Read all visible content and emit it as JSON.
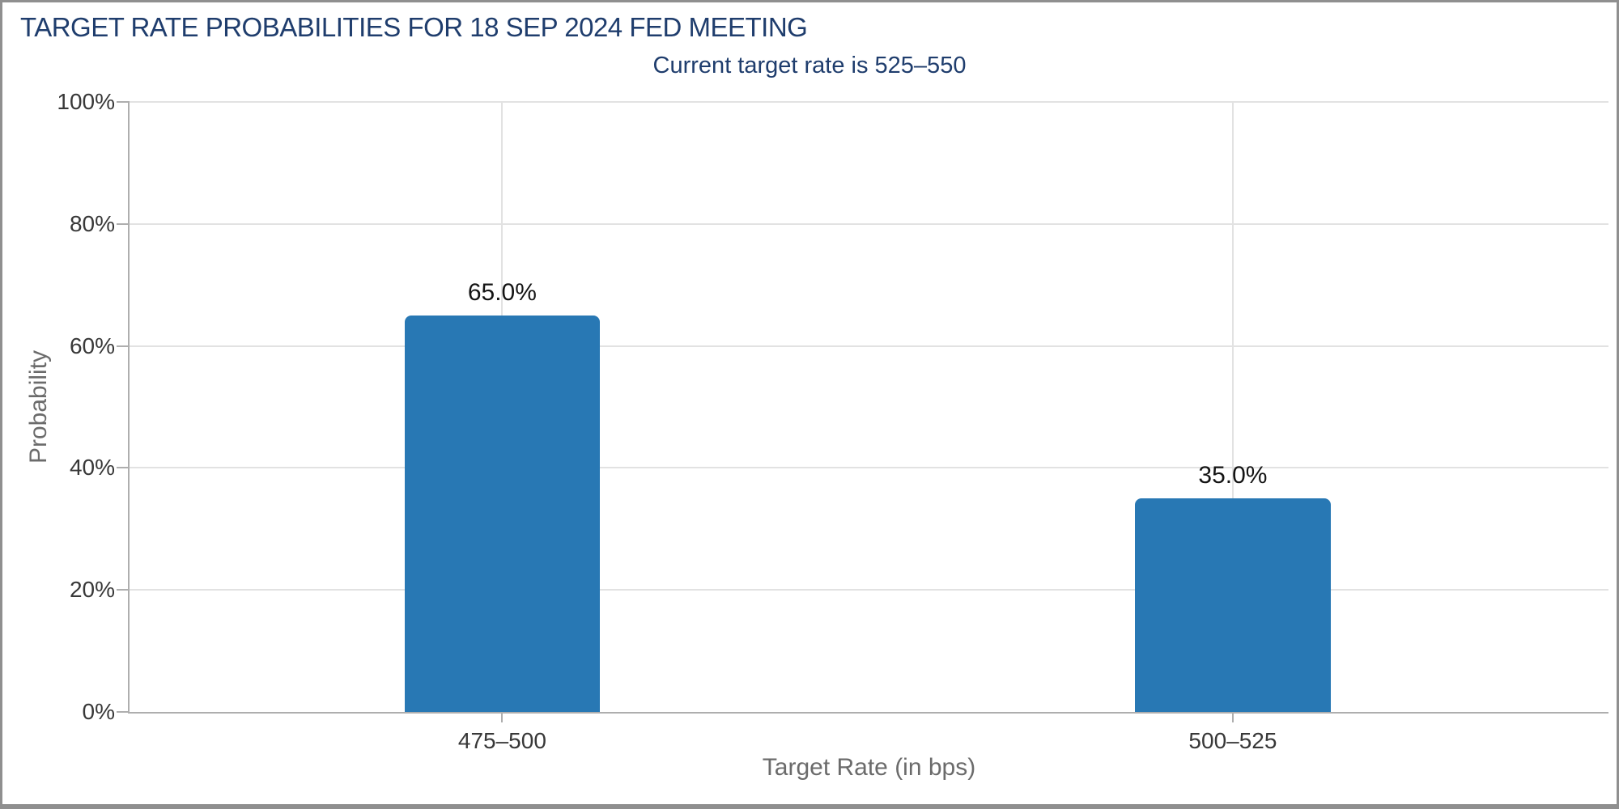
{
  "chart_data": {
    "type": "bar",
    "title": "TARGET RATE PROBABILITIES FOR 18 SEP 2024 FED MEETING",
    "subtitle": "Current target rate is 525–550",
    "categories": [
      "475–500",
      "500–525"
    ],
    "values": [
      65.0,
      35.0
    ],
    "value_labels": [
      "65.0%",
      "35.0%"
    ],
    "xlabel": "Target Rate (in bps)",
    "ylabel": "Probability",
    "ylim": [
      0,
      100
    ],
    "yticks": [
      0,
      20,
      40,
      60,
      80,
      100
    ],
    "ytick_suffix": "%",
    "grid": true,
    "legend": "none",
    "colors": {
      "bar": "#2878b4",
      "title": "#1f3d6d",
      "grid": "#e2e2e2",
      "axis": "#aeaeae",
      "tick_label": "#383838",
      "value_label": "#141414",
      "axis_title": "#6b6b6b",
      "frame": "#8f8f8f"
    },
    "layout": {
      "x_centers_pct": [
        25.2,
        74.6
      ],
      "bar_width_pct": 13.2
    }
  }
}
